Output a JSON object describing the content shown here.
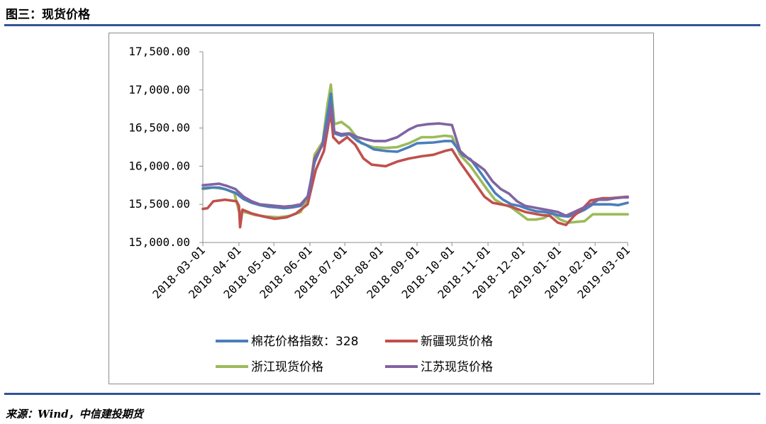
{
  "figure": {
    "title": "图三：现货价格",
    "source": "来源：Wind，中信建投期货"
  },
  "chart_data": {
    "type": "line",
    "title": "",
    "xlabel": "",
    "ylabel": "",
    "ylim": [
      15000,
      17500
    ],
    "y_ticks": [
      "15,000.00",
      "15,500.00",
      "16,000.00",
      "16,500.00",
      "17,000.00",
      "17,500.00"
    ],
    "x_ticks": [
      "2018-03-01",
      "2018-04-01",
      "2018-05-01",
      "2018-06-01",
      "2018-07-01",
      "2018-08-01",
      "2018-09-01",
      "2018-10-01",
      "2018-11-01",
      "2018-12-01",
      "2019-01-01",
      "2019-02-01",
      "2019-03-01"
    ],
    "x_range": [
      "2018-03-01",
      "2019-03-01"
    ],
    "grid": false,
    "legend": "bottom",
    "series": [
      {
        "name": "棉花价格指数：328",
        "color": "#4a7ebb",
        "points": [
          [
            "2018-03-01",
            15710
          ],
          [
            "2018-03-08",
            15720
          ],
          [
            "2018-03-15",
            15720
          ],
          [
            "2018-03-22",
            15690
          ],
          [
            "2018-03-29",
            15650
          ],
          [
            "2018-04-05",
            15570
          ],
          [
            "2018-04-12",
            15520
          ],
          [
            "2018-04-19",
            15490
          ],
          [
            "2018-04-26",
            15470
          ],
          [
            "2018-05-03",
            15460
          ],
          [
            "2018-05-10",
            15450
          ],
          [
            "2018-05-17",
            15460
          ],
          [
            "2018-05-24",
            15480
          ],
          [
            "2018-05-30",
            15600
          ],
          [
            "2018-06-05",
            16050
          ],
          [
            "2018-06-12",
            16300
          ],
          [
            "2018-06-17",
            16750
          ],
          [
            "2018-06-19",
            16950
          ],
          [
            "2018-06-22",
            16430
          ],
          [
            "2018-06-28",
            16400
          ],
          [
            "2018-07-05",
            16420
          ],
          [
            "2018-07-12",
            16330
          ],
          [
            "2018-07-19",
            16280
          ],
          [
            "2018-07-26",
            16220
          ],
          [
            "2018-08-05",
            16200
          ],
          [
            "2018-08-15",
            16190
          ],
          [
            "2018-08-25",
            16250
          ],
          [
            "2018-09-01",
            16300
          ],
          [
            "2018-09-15",
            16310
          ],
          [
            "2018-09-25",
            16330
          ],
          [
            "2018-10-01",
            16330
          ],
          [
            "2018-10-10",
            16150
          ],
          [
            "2018-10-17",
            16090
          ],
          [
            "2018-10-24",
            15950
          ],
          [
            "2018-10-31",
            15800
          ],
          [
            "2018-11-07",
            15650
          ],
          [
            "2018-11-14",
            15560
          ],
          [
            "2018-11-21",
            15500
          ],
          [
            "2018-11-28",
            15480
          ],
          [
            "2018-12-05",
            15440
          ],
          [
            "2018-12-12",
            15410
          ],
          [
            "2018-12-19",
            15400
          ],
          [
            "2018-12-26",
            15380
          ],
          [
            "2019-01-02",
            15350
          ],
          [
            "2019-01-09",
            15340
          ],
          [
            "2019-01-16",
            15380
          ],
          [
            "2019-01-23",
            15430
          ],
          [
            "2019-01-30",
            15500
          ],
          [
            "2019-02-07",
            15500
          ],
          [
            "2019-02-14",
            15500
          ],
          [
            "2019-02-21",
            15490
          ],
          [
            "2019-03-01",
            15520
          ]
        ]
      },
      {
        "name": "新疆现货价格",
        "color": "#c0504d",
        "points": [
          [
            "2018-03-01",
            15440
          ],
          [
            "2018-03-05",
            15450
          ],
          [
            "2018-03-10",
            15540
          ],
          [
            "2018-03-20",
            15560
          ],
          [
            "2018-03-30",
            15540
          ],
          [
            "2018-04-01",
            15480
          ],
          [
            "2018-04-02",
            15200
          ],
          [
            "2018-04-04",
            15430
          ],
          [
            "2018-04-12",
            15380
          ],
          [
            "2018-04-22",
            15340
          ],
          [
            "2018-05-02",
            15310
          ],
          [
            "2018-05-12",
            15330
          ],
          [
            "2018-05-20",
            15380
          ],
          [
            "2018-05-30",
            15500
          ],
          [
            "2018-06-06",
            15950
          ],
          [
            "2018-06-13",
            16200
          ],
          [
            "2018-06-17",
            16550
          ],
          [
            "2018-06-19",
            16700
          ],
          [
            "2018-06-21",
            16380
          ],
          [
            "2018-06-26",
            16300
          ],
          [
            "2018-07-03",
            16380
          ],
          [
            "2018-07-10",
            16280
          ],
          [
            "2018-07-17",
            16100
          ],
          [
            "2018-07-24",
            16020
          ],
          [
            "2018-08-05",
            16000
          ],
          [
            "2018-08-15",
            16060
          ],
          [
            "2018-08-25",
            16100
          ],
          [
            "2018-09-05",
            16130
          ],
          [
            "2018-09-15",
            16150
          ],
          [
            "2018-09-25",
            16200
          ],
          [
            "2018-10-01",
            16220
          ],
          [
            "2018-10-08",
            16050
          ],
          [
            "2018-10-15",
            15900
          ],
          [
            "2018-10-22",
            15750
          ],
          [
            "2018-10-29",
            15600
          ],
          [
            "2018-11-05",
            15520
          ],
          [
            "2018-11-12",
            15500
          ],
          [
            "2018-11-19",
            15480
          ],
          [
            "2018-11-26",
            15440
          ],
          [
            "2018-12-03",
            15400
          ],
          [
            "2018-12-10",
            15380
          ],
          [
            "2018-12-17",
            15360
          ],
          [
            "2018-12-24",
            15350
          ],
          [
            "2018-12-31",
            15260
          ],
          [
            "2019-01-07",
            15230
          ],
          [
            "2019-01-14",
            15350
          ],
          [
            "2019-01-21",
            15440
          ],
          [
            "2019-01-28",
            15550
          ],
          [
            "2019-02-07",
            15580
          ],
          [
            "2019-02-14",
            15580
          ],
          [
            "2019-02-21",
            15590
          ],
          [
            "2019-03-01",
            15600
          ]
        ]
      },
      {
        "name": "浙江现货价格",
        "color": "#9bbb59",
        "points": [
          [
            "2018-03-01",
            15700
          ],
          [
            "2018-03-10",
            15720
          ],
          [
            "2018-03-20",
            15700
          ],
          [
            "2018-03-28",
            15650
          ],
          [
            "2018-04-01",
            15410
          ],
          [
            "2018-04-08",
            15390
          ],
          [
            "2018-04-15",
            15360
          ],
          [
            "2018-04-25",
            15340
          ],
          [
            "2018-05-05",
            15330
          ],
          [
            "2018-05-15",
            15350
          ],
          [
            "2018-05-24",
            15400
          ],
          [
            "2018-05-31",
            15600
          ],
          [
            "2018-06-05",
            16150
          ],
          [
            "2018-06-12",
            16320
          ],
          [
            "2018-06-16",
            16800
          ],
          [
            "2018-06-19",
            17070
          ],
          [
            "2018-06-22",
            16550
          ],
          [
            "2018-06-28",
            16580
          ],
          [
            "2018-07-05",
            16500
          ],
          [
            "2018-07-15",
            16300
          ],
          [
            "2018-07-25",
            16250
          ],
          [
            "2018-08-05",
            16240
          ],
          [
            "2018-08-15",
            16250
          ],
          [
            "2018-08-25",
            16300
          ],
          [
            "2018-09-05",
            16380
          ],
          [
            "2018-09-15",
            16380
          ],
          [
            "2018-09-25",
            16400
          ],
          [
            "2018-10-01",
            16390
          ],
          [
            "2018-10-08",
            16150
          ],
          [
            "2018-10-17",
            16000
          ],
          [
            "2018-10-24",
            15850
          ],
          [
            "2018-10-31",
            15700
          ],
          [
            "2018-11-07",
            15560
          ],
          [
            "2018-11-14",
            15500
          ],
          [
            "2018-11-21",
            15460
          ],
          [
            "2018-11-28",
            15380
          ],
          [
            "2018-12-05",
            15300
          ],
          [
            "2018-12-12",
            15300
          ],
          [
            "2018-12-19",
            15320
          ],
          [
            "2018-12-26",
            15380
          ],
          [
            "2019-01-02",
            15300
          ],
          [
            "2019-01-09",
            15260
          ],
          [
            "2019-01-16",
            15270
          ],
          [
            "2019-01-23",
            15280
          ],
          [
            "2019-01-30",
            15370
          ],
          [
            "2019-02-07",
            15370
          ],
          [
            "2019-02-14",
            15370
          ],
          [
            "2019-02-21",
            15370
          ],
          [
            "2019-03-01",
            15370
          ]
        ]
      },
      {
        "name": "江苏现货价格",
        "color": "#8064a2",
        "points": [
          [
            "2018-03-01",
            15750
          ],
          [
            "2018-03-08",
            15760
          ],
          [
            "2018-03-15",
            15770
          ],
          [
            "2018-03-22",
            15740
          ],
          [
            "2018-03-29",
            15700
          ],
          [
            "2018-04-05",
            15600
          ],
          [
            "2018-04-12",
            15540
          ],
          [
            "2018-04-19",
            15500
          ],
          [
            "2018-04-26",
            15490
          ],
          [
            "2018-05-03",
            15480
          ],
          [
            "2018-05-10",
            15470
          ],
          [
            "2018-05-17",
            15480
          ],
          [
            "2018-05-24",
            15500
          ],
          [
            "2018-05-31",
            15620
          ],
          [
            "2018-06-05",
            16100
          ],
          [
            "2018-06-12",
            16280
          ],
          [
            "2018-06-17",
            16600
          ],
          [
            "2018-06-19",
            16800
          ],
          [
            "2018-06-22",
            16450
          ],
          [
            "2018-06-28",
            16420
          ],
          [
            "2018-07-05",
            16430
          ],
          [
            "2018-07-12",
            16380
          ],
          [
            "2018-07-19",
            16350
          ],
          [
            "2018-07-26",
            16330
          ],
          [
            "2018-08-05",
            16330
          ],
          [
            "2018-08-15",
            16380
          ],
          [
            "2018-08-25",
            16480
          ],
          [
            "2018-09-01",
            16530
          ],
          [
            "2018-09-10",
            16550
          ],
          [
            "2018-09-20",
            16560
          ],
          [
            "2018-10-01",
            16540
          ],
          [
            "2018-10-08",
            16200
          ],
          [
            "2018-10-15",
            16100
          ],
          [
            "2018-10-22",
            16030
          ],
          [
            "2018-10-29",
            15950
          ],
          [
            "2018-11-05",
            15800
          ],
          [
            "2018-11-12",
            15700
          ],
          [
            "2018-11-19",
            15640
          ],
          [
            "2018-11-26",
            15540
          ],
          [
            "2018-12-03",
            15480
          ],
          [
            "2018-12-10",
            15460
          ],
          [
            "2018-12-17",
            15440
          ],
          [
            "2018-12-24",
            15420
          ],
          [
            "2018-12-31",
            15400
          ],
          [
            "2019-01-07",
            15350
          ],
          [
            "2019-01-14",
            15400
          ],
          [
            "2019-01-21",
            15450
          ],
          [
            "2019-01-28",
            15500
          ],
          [
            "2019-02-04",
            15560
          ],
          [
            "2019-02-11",
            15560
          ],
          [
            "2019-02-18",
            15580
          ],
          [
            "2019-02-25",
            15590
          ],
          [
            "2019-03-01",
            15590
          ]
        ]
      }
    ]
  }
}
